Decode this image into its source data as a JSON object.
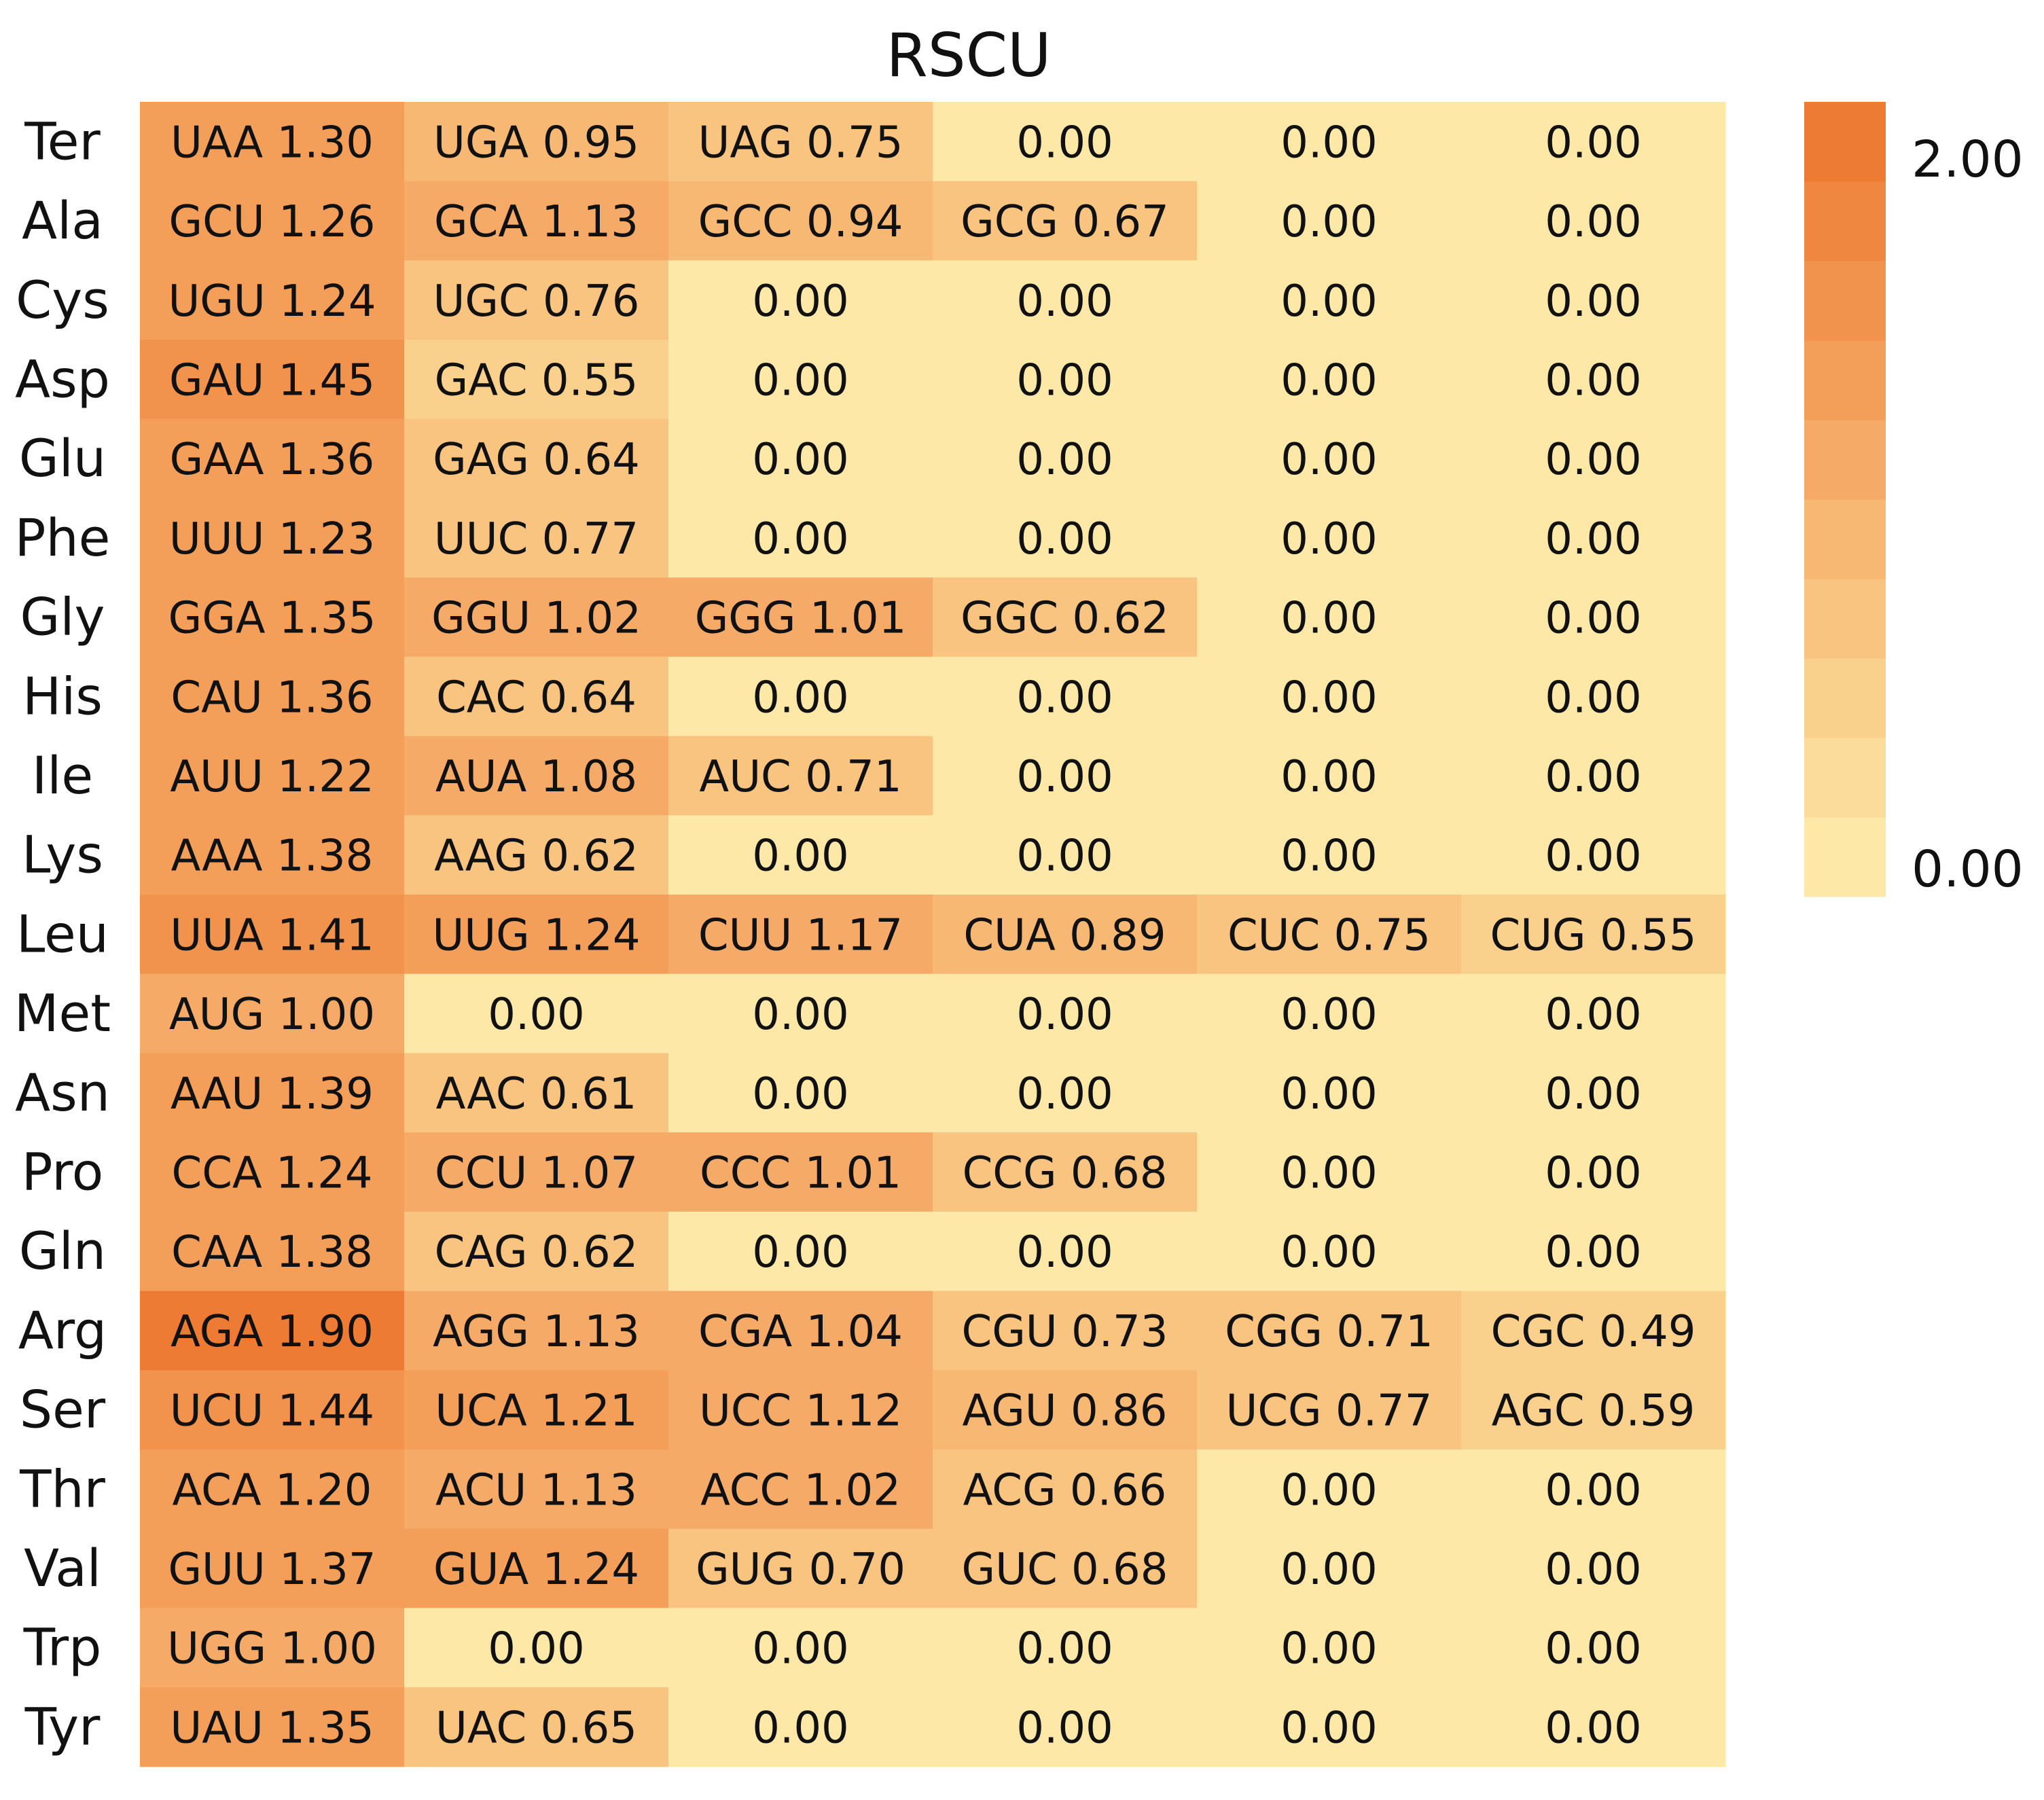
{
  "chart_data": {
    "type": "heatmap",
    "title": "RSCU",
    "xlabel": "",
    "ylabel": "",
    "value_range": [
      0,
      2
    ],
    "color_low": "#FDE8A7",
    "color_high": "#EE7B33",
    "colorbar": {
      "max_label": "2.00",
      "min_label": "0.00",
      "levels": 10,
      "placement": "right"
    },
    "rows": [
      {
        "aa": "Ter",
        "cells": [
          {
            "codon": "UAA",
            "value": 1.3,
            "label": "UAA 1.30"
          },
          {
            "codon": "UGA",
            "value": 0.95,
            "label": "UGA 0.95"
          },
          {
            "codon": "UAG",
            "value": 0.75,
            "label": "UAG 0.75"
          },
          {
            "codon": "",
            "value": 0.0,
            "label": "0.00"
          },
          {
            "codon": "",
            "value": 0.0,
            "label": "0.00"
          },
          {
            "codon": "",
            "value": 0.0,
            "label": "0.00"
          }
        ]
      },
      {
        "aa": "Ala",
        "cells": [
          {
            "codon": "GCU",
            "value": 1.26,
            "label": "GCU 1.26"
          },
          {
            "codon": "GCA",
            "value": 1.13,
            "label": "GCA 1.13"
          },
          {
            "codon": "GCC",
            "value": 0.94,
            "label": "GCC 0.94"
          },
          {
            "codon": "GCG",
            "value": 0.67,
            "label": "GCG 0.67"
          },
          {
            "codon": "",
            "value": 0.0,
            "label": "0.00"
          },
          {
            "codon": "",
            "value": 0.0,
            "label": "0.00"
          }
        ]
      },
      {
        "aa": "Cys",
        "cells": [
          {
            "codon": "UGU",
            "value": 1.24,
            "label": "UGU 1.24"
          },
          {
            "codon": "UGC",
            "value": 0.76,
            "label": "UGC 0.76"
          },
          {
            "codon": "",
            "value": 0.0,
            "label": "0.00"
          },
          {
            "codon": "",
            "value": 0.0,
            "label": "0.00"
          },
          {
            "codon": "",
            "value": 0.0,
            "label": "0.00"
          },
          {
            "codon": "",
            "value": 0.0,
            "label": "0.00"
          }
        ]
      },
      {
        "aa": "Asp",
        "cells": [
          {
            "codon": "GAU",
            "value": 1.45,
            "label": "GAU 1.45"
          },
          {
            "codon": "GAC",
            "value": 0.55,
            "label": "GAC 0.55"
          },
          {
            "codon": "",
            "value": 0.0,
            "label": "0.00"
          },
          {
            "codon": "",
            "value": 0.0,
            "label": "0.00"
          },
          {
            "codon": "",
            "value": 0.0,
            "label": "0.00"
          },
          {
            "codon": "",
            "value": 0.0,
            "label": "0.00"
          }
        ]
      },
      {
        "aa": "Glu",
        "cells": [
          {
            "codon": "GAA",
            "value": 1.36,
            "label": "GAA 1.36"
          },
          {
            "codon": "GAG",
            "value": 0.64,
            "label": "GAG 0.64"
          },
          {
            "codon": "",
            "value": 0.0,
            "label": "0.00"
          },
          {
            "codon": "",
            "value": 0.0,
            "label": "0.00"
          },
          {
            "codon": "",
            "value": 0.0,
            "label": "0.00"
          },
          {
            "codon": "",
            "value": 0.0,
            "label": "0.00"
          }
        ]
      },
      {
        "aa": "Phe",
        "cells": [
          {
            "codon": "UUU",
            "value": 1.23,
            "label": "UUU 1.23"
          },
          {
            "codon": "UUC",
            "value": 0.77,
            "label": "UUC 0.77"
          },
          {
            "codon": "",
            "value": 0.0,
            "label": "0.00"
          },
          {
            "codon": "",
            "value": 0.0,
            "label": "0.00"
          },
          {
            "codon": "",
            "value": 0.0,
            "label": "0.00"
          },
          {
            "codon": "",
            "value": 0.0,
            "label": "0.00"
          }
        ]
      },
      {
        "aa": "Gly",
        "cells": [
          {
            "codon": "GGA",
            "value": 1.35,
            "label": "GGA 1.35"
          },
          {
            "codon": "GGU",
            "value": 1.02,
            "label": "GGU 1.02"
          },
          {
            "codon": "GGG",
            "value": 1.01,
            "label": "GGG 1.01"
          },
          {
            "codon": "GGC",
            "value": 0.62,
            "label": "GGC 0.62"
          },
          {
            "codon": "",
            "value": 0.0,
            "label": "0.00"
          },
          {
            "codon": "",
            "value": 0.0,
            "label": "0.00"
          }
        ]
      },
      {
        "aa": "His",
        "cells": [
          {
            "codon": "CAU",
            "value": 1.36,
            "label": "CAU 1.36"
          },
          {
            "codon": "CAC",
            "value": 0.64,
            "label": "CAC 0.64"
          },
          {
            "codon": "",
            "value": 0.0,
            "label": "0.00"
          },
          {
            "codon": "",
            "value": 0.0,
            "label": "0.00"
          },
          {
            "codon": "",
            "value": 0.0,
            "label": "0.00"
          },
          {
            "codon": "",
            "value": 0.0,
            "label": "0.00"
          }
        ]
      },
      {
        "aa": "Ile",
        "cells": [
          {
            "codon": "AUU",
            "value": 1.22,
            "label": "AUU 1.22"
          },
          {
            "codon": "AUA",
            "value": 1.08,
            "label": "AUA 1.08"
          },
          {
            "codon": "AUC",
            "value": 0.71,
            "label": "AUC 0.71"
          },
          {
            "codon": "",
            "value": 0.0,
            "label": "0.00"
          },
          {
            "codon": "",
            "value": 0.0,
            "label": "0.00"
          },
          {
            "codon": "",
            "value": 0.0,
            "label": "0.00"
          }
        ]
      },
      {
        "aa": "Lys",
        "cells": [
          {
            "codon": "AAA",
            "value": 1.38,
            "label": "AAA 1.38"
          },
          {
            "codon": "AAG",
            "value": 0.62,
            "label": "AAG 0.62"
          },
          {
            "codon": "",
            "value": 0.0,
            "label": "0.00"
          },
          {
            "codon": "",
            "value": 0.0,
            "label": "0.00"
          },
          {
            "codon": "",
            "value": 0.0,
            "label": "0.00"
          },
          {
            "codon": "",
            "value": 0.0,
            "label": "0.00"
          }
        ]
      },
      {
        "aa": "Leu",
        "cells": [
          {
            "codon": "UUA",
            "value": 1.41,
            "label": "UUA 1.41"
          },
          {
            "codon": "UUG",
            "value": 1.24,
            "label": "UUG 1.24"
          },
          {
            "codon": "CUU",
            "value": 1.17,
            "label": "CUU 1.17"
          },
          {
            "codon": "CUA",
            "value": 0.89,
            "label": "CUA 0.89"
          },
          {
            "codon": "CUC",
            "value": 0.75,
            "label": "CUC 0.75"
          },
          {
            "codon": "CUG",
            "value": 0.55,
            "label": "CUG 0.55"
          }
        ]
      },
      {
        "aa": "Met",
        "cells": [
          {
            "codon": "AUG",
            "value": 1.0,
            "label": "AUG 1.00"
          },
          {
            "codon": "",
            "value": 0.0,
            "label": "0.00"
          },
          {
            "codon": "",
            "value": 0.0,
            "label": "0.00"
          },
          {
            "codon": "",
            "value": 0.0,
            "label": "0.00"
          },
          {
            "codon": "",
            "value": 0.0,
            "label": "0.00"
          },
          {
            "codon": "",
            "value": 0.0,
            "label": "0.00"
          }
        ]
      },
      {
        "aa": "Asn",
        "cells": [
          {
            "codon": "AAU",
            "value": 1.39,
            "label": "AAU 1.39"
          },
          {
            "codon": "AAC",
            "value": 0.61,
            "label": "AAC 0.61"
          },
          {
            "codon": "",
            "value": 0.0,
            "label": "0.00"
          },
          {
            "codon": "",
            "value": 0.0,
            "label": "0.00"
          },
          {
            "codon": "",
            "value": 0.0,
            "label": "0.00"
          },
          {
            "codon": "",
            "value": 0.0,
            "label": "0.00"
          }
        ]
      },
      {
        "aa": "Pro",
        "cells": [
          {
            "codon": "CCA",
            "value": 1.24,
            "label": "CCA 1.24"
          },
          {
            "codon": "CCU",
            "value": 1.07,
            "label": "CCU 1.07"
          },
          {
            "codon": "CCC",
            "value": 1.01,
            "label": "CCC 1.01"
          },
          {
            "codon": "CCG",
            "value": 0.68,
            "label": "CCG 0.68"
          },
          {
            "codon": "",
            "value": 0.0,
            "label": "0.00"
          },
          {
            "codon": "",
            "value": 0.0,
            "label": "0.00"
          }
        ]
      },
      {
        "aa": "Gln",
        "cells": [
          {
            "codon": "CAA",
            "value": 1.38,
            "label": "CAA 1.38"
          },
          {
            "codon": "CAG",
            "value": 0.62,
            "label": "CAG 0.62"
          },
          {
            "codon": "",
            "value": 0.0,
            "label": "0.00"
          },
          {
            "codon": "",
            "value": 0.0,
            "label": "0.00"
          },
          {
            "codon": "",
            "value": 0.0,
            "label": "0.00"
          },
          {
            "codon": "",
            "value": 0.0,
            "label": "0.00"
          }
        ]
      },
      {
        "aa": "Arg",
        "cells": [
          {
            "codon": "AGA",
            "value": 1.9,
            "label": "AGA 1.90"
          },
          {
            "codon": "AGG",
            "value": 1.13,
            "label": "AGG 1.13"
          },
          {
            "codon": "CGA",
            "value": 1.04,
            "label": "CGA 1.04"
          },
          {
            "codon": "CGU",
            "value": 0.73,
            "label": "CGU 0.73"
          },
          {
            "codon": "CGG",
            "value": 0.71,
            "label": "CGG 0.71"
          },
          {
            "codon": "CGC",
            "value": 0.49,
            "label": "CGC 0.49"
          }
        ]
      },
      {
        "aa": "Ser",
        "cells": [
          {
            "codon": "UCU",
            "value": 1.44,
            "label": "UCU 1.44"
          },
          {
            "codon": "UCA",
            "value": 1.21,
            "label": "UCA 1.21"
          },
          {
            "codon": "UCC",
            "value": 1.12,
            "label": "UCC 1.12"
          },
          {
            "codon": "AGU",
            "value": 0.86,
            "label": "AGU 0.86"
          },
          {
            "codon": "UCG",
            "value": 0.77,
            "label": "UCG 0.77"
          },
          {
            "codon": "AGC",
            "value": 0.59,
            "label": "AGC 0.59"
          }
        ]
      },
      {
        "aa": "Thr",
        "cells": [
          {
            "codon": "ACA",
            "value": 1.2,
            "label": "ACA 1.20"
          },
          {
            "codon": "ACU",
            "value": 1.13,
            "label": "ACU 1.13"
          },
          {
            "codon": "ACC",
            "value": 1.02,
            "label": "ACC 1.02"
          },
          {
            "codon": "ACG",
            "value": 0.66,
            "label": "ACG 0.66"
          },
          {
            "codon": "",
            "value": 0.0,
            "label": "0.00"
          },
          {
            "codon": "",
            "value": 0.0,
            "label": "0.00"
          }
        ]
      },
      {
        "aa": "Val",
        "cells": [
          {
            "codon": "GUU",
            "value": 1.37,
            "label": "GUU 1.37"
          },
          {
            "codon": "GUA",
            "value": 1.24,
            "label": "GUA 1.24"
          },
          {
            "codon": "GUG",
            "value": 0.7,
            "label": "GUG 0.70"
          },
          {
            "codon": "GUC",
            "value": 0.68,
            "label": "GUC 0.68"
          },
          {
            "codon": "",
            "value": 0.0,
            "label": "0.00"
          },
          {
            "codon": "",
            "value": 0.0,
            "label": "0.00"
          }
        ]
      },
      {
        "aa": "Trp",
        "cells": [
          {
            "codon": "UGG",
            "value": 1.0,
            "label": "UGG 1.00"
          },
          {
            "codon": "",
            "value": 0.0,
            "label": "0.00"
          },
          {
            "codon": "",
            "value": 0.0,
            "label": "0.00"
          },
          {
            "codon": "",
            "value": 0.0,
            "label": "0.00"
          },
          {
            "codon": "",
            "value": 0.0,
            "label": "0.00"
          },
          {
            "codon": "",
            "value": 0.0,
            "label": "0.00"
          }
        ]
      },
      {
        "aa": "Tyr",
        "cells": [
          {
            "codon": "UAU",
            "value": 1.35,
            "label": "UAU 1.35"
          },
          {
            "codon": "UAC",
            "value": 0.65,
            "label": "UAC 0.65"
          },
          {
            "codon": "",
            "value": 0.0,
            "label": "0.00"
          },
          {
            "codon": "",
            "value": 0.0,
            "label": "0.00"
          },
          {
            "codon": "",
            "value": 0.0,
            "label": "0.00"
          },
          {
            "codon": "",
            "value": 0.0,
            "label": "0.00"
          }
        ]
      }
    ]
  }
}
